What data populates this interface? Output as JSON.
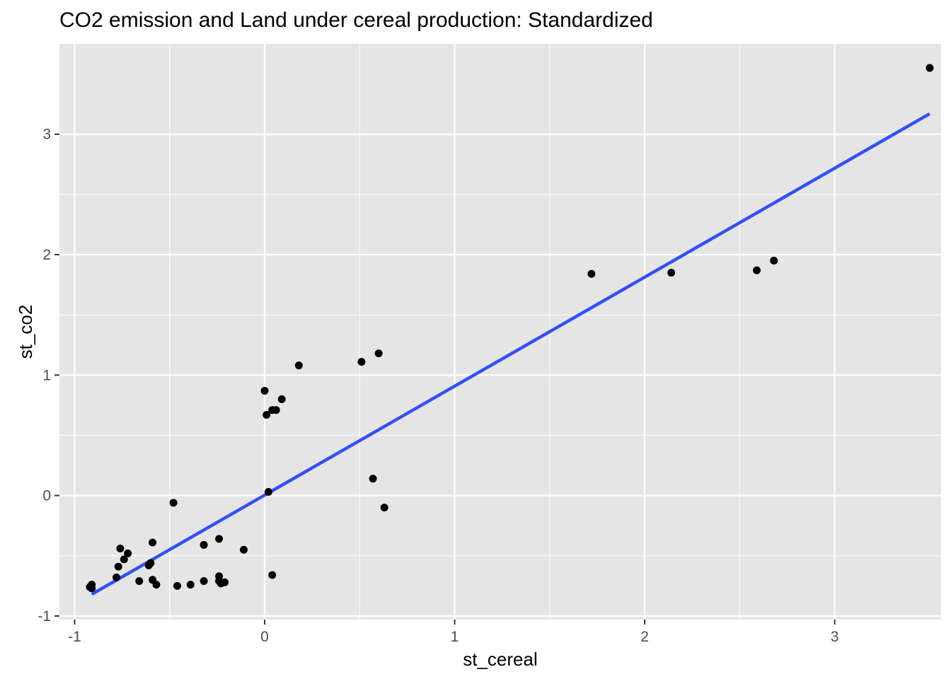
{
  "chart_data": {
    "type": "scatter",
    "title": "CO2 emission and Land under cereal production: Standardized",
    "xlabel": "st_cereal",
    "ylabel": "st_co2",
    "xlim": [
      -1.08,
      3.56
    ],
    "ylim": [
      -1.03,
      3.75
    ],
    "x_ticks": [
      {
        "value": -1,
        "label": "-1"
      },
      {
        "value": 0,
        "label": "0"
      },
      {
        "value": 1,
        "label": "1"
      },
      {
        "value": 2,
        "label": "2"
      },
      {
        "value": 3,
        "label": "3"
      }
    ],
    "y_ticks": [
      {
        "value": -1,
        "label": "-1"
      },
      {
        "value": 0,
        "label": "0"
      },
      {
        "value": 1,
        "label": "1"
      },
      {
        "value": 2,
        "label": "2"
      },
      {
        "value": 3,
        "label": "3"
      }
    ],
    "grid": true,
    "legend": "none",
    "colors": {
      "panel": "#e5e5e5",
      "grid": "#ffffff",
      "point": "#000000",
      "fit_line": "#3050f8"
    },
    "points": [
      {
        "x": 3.5,
        "y": 3.55
      },
      {
        "x": 1.72,
        "y": 1.84
      },
      {
        "x": 2.14,
        "y": 1.85
      },
      {
        "x": 2.59,
        "y": 1.87
      },
      {
        "x": 2.68,
        "y": 1.95
      },
      {
        "x": 0.18,
        "y": 1.08
      },
      {
        "x": 0.51,
        "y": 1.11
      },
      {
        "x": 0.6,
        "y": 1.18
      },
      {
        "x": 0.0,
        "y": 0.87
      },
      {
        "x": 0.09,
        "y": 0.8
      },
      {
        "x": 0.04,
        "y": 0.71
      },
      {
        "x": 0.06,
        "y": 0.71
      },
      {
        "x": 0.01,
        "y": 0.67
      },
      {
        "x": 0.57,
        "y": 0.14
      },
      {
        "x": 0.02,
        "y": 0.03
      },
      {
        "x": 0.63,
        "y": -0.1
      },
      {
        "x": 0.04,
        "y": -0.66
      },
      {
        "x": -0.48,
        "y": -0.06
      },
      {
        "x": -0.59,
        "y": -0.39
      },
      {
        "x": -0.24,
        "y": -0.36
      },
      {
        "x": -0.32,
        "y": -0.41
      },
      {
        "x": -0.11,
        "y": -0.45
      },
      {
        "x": -0.76,
        "y": -0.44
      },
      {
        "x": -0.72,
        "y": -0.48
      },
      {
        "x": -0.74,
        "y": -0.53
      },
      {
        "x": -0.6,
        "y": -0.56
      },
      {
        "x": -0.61,
        "y": -0.58
      },
      {
        "x": -0.77,
        "y": -0.59
      },
      {
        "x": -0.78,
        "y": -0.68
      },
      {
        "x": -0.59,
        "y": -0.7
      },
      {
        "x": -0.66,
        "y": -0.71
      },
      {
        "x": -0.57,
        "y": -0.74
      },
      {
        "x": -0.46,
        "y": -0.75
      },
      {
        "x": -0.39,
        "y": -0.74
      },
      {
        "x": -0.32,
        "y": -0.71
      },
      {
        "x": -0.24,
        "y": -0.67
      },
      {
        "x": -0.24,
        "y": -0.71
      },
      {
        "x": -0.23,
        "y": -0.73
      },
      {
        "x": -0.21,
        "y": -0.72
      },
      {
        "x": -0.91,
        "y": -0.74
      },
      {
        "x": -0.92,
        "y": -0.76
      },
      {
        "x": -0.91,
        "y": -0.77
      }
    ],
    "fit_line": [
      {
        "x": -0.91,
        "y": -0.82
      },
      {
        "x": 3.5,
        "y": 3.17
      }
    ]
  }
}
